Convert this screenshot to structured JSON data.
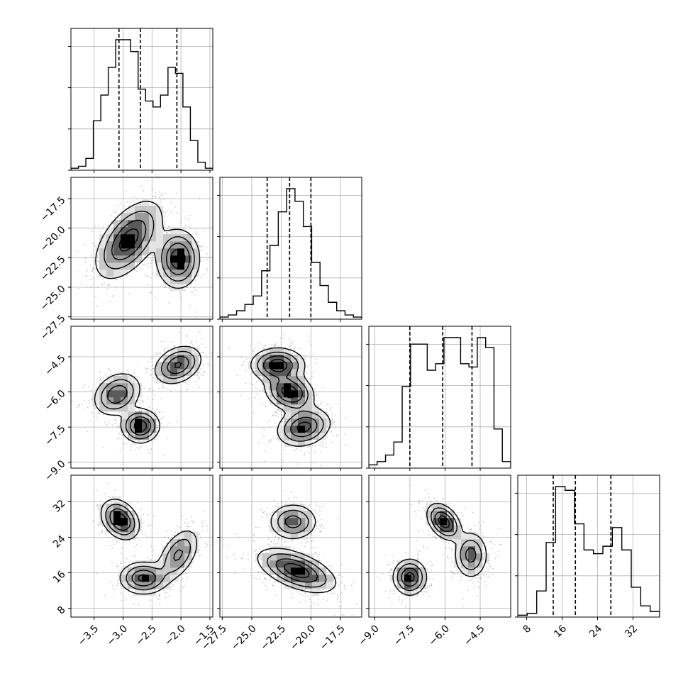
{
  "chart_data": {
    "type": "corner",
    "params": [
      {
        "ticks": [
          -3.5,
          -3.0,
          -2.5,
          -2.0,
          -1.5
        ],
        "tick_labels": [
          "−3.5",
          "−3.0",
          "−2.5",
          "−2.0",
          "−1.5"
        ],
        "range": [
          -3.9,
          -1.45
        ]
      },
      {
        "ticks": [
          -27.5,
          -25.0,
          -22.5,
          -20.0,
          -17.5
        ],
        "tick_labels": [
          "−27.5",
          "−25.0",
          "−22.5",
          "−20.0",
          "−17.5"
        ],
        "range": [
          -27.7,
          -15.7
        ]
      },
      {
        "ticks": [
          -9.0,
          -7.5,
          -6.0,
          -4.5
        ],
        "tick_labels": [
          "−9.0",
          "−7.5",
          "−6.0",
          "−4.5"
        ],
        "range": [
          -9.25,
          -3.2
        ]
      },
      {
        "ticks": [
          8,
          16,
          24,
          32
        ],
        "tick_labels": [
          "8",
          "16",
          "24",
          "32"
        ],
        "range": [
          6.0,
          38.0
        ]
      }
    ],
    "histograms": [
      {
        "counts": [
          1,
          2,
          6,
          25,
          38,
          52,
          66,
          66,
          60,
          41,
          35,
          32,
          38,
          52,
          49,
          32,
          15,
          4,
          1
        ],
        "quantiles": [
          -3.07,
          -2.7,
          -2.07
        ]
      },
      {
        "counts": [
          1,
          2,
          4,
          7,
          11,
          23,
          35,
          51,
          62,
          56,
          44,
          27,
          16,
          8,
          4,
          2,
          1
        ],
        "quantiles": [
          -23.7,
          -21.8,
          -20.0
        ]
      },
      {
        "counts": [
          1,
          2,
          4,
          8,
          25,
          38,
          38,
          30,
          32,
          40,
          40,
          32,
          31,
          40,
          37,
          12,
          2
        ],
        "quantiles": [
          -7.5,
          -6.1,
          -4.85
        ]
      },
      {
        "counts": [
          0.5,
          1,
          7,
          20,
          35,
          34,
          25,
          18,
          17,
          19,
          24,
          18,
          8,
          3,
          1.5
        ],
        "quantiles": [
          14.0,
          19.0,
          27.0
        ]
      }
    ],
    "pairs": [
      {
        "x": 0,
        "y": 1,
        "modes": [
          {
            "cx": -2.9,
            "cy": -21.0,
            "sx": 0.28,
            "sy": 1.6,
            "rho": 0.55,
            "w": 0.62
          },
          {
            "cx": -2.05,
            "cy": -22.6,
            "sx": 0.18,
            "sy": 1.2,
            "rho": 0.0,
            "w": 0.38
          }
        ]
      },
      {
        "x": 0,
        "y": 2,
        "modes": [
          {
            "cx": -3.1,
            "cy": -6.1,
            "sx": 0.2,
            "sy": 0.45,
            "rho": 0.25,
            "w": 0.36
          },
          {
            "cx": -2.7,
            "cy": -7.45,
            "sx": 0.16,
            "sy": 0.35,
            "rho": 0.0,
            "w": 0.3
          },
          {
            "cx": -2.05,
            "cy": -4.85,
            "sx": 0.2,
            "sy": 0.4,
            "rho": 0.3,
            "w": 0.34
          }
        ]
      },
      {
        "x": 0,
        "y": 3,
        "modes": [
          {
            "cx": -3.05,
            "cy": 28.0,
            "sx": 0.16,
            "sy": 2.2,
            "rho": -0.3,
            "w": 0.36
          },
          {
            "cx": -2.65,
            "cy": 14.8,
            "sx": 0.2,
            "sy": 1.8,
            "rho": 0.0,
            "w": 0.34
          },
          {
            "cx": -2.05,
            "cy": 20.0,
            "sx": 0.18,
            "sy": 3.0,
            "rho": 0.5,
            "w": 0.3
          }
        ]
      },
      {
        "x": 1,
        "y": 2,
        "modes": [
          {
            "cx": -22.8,
            "cy": -4.85,
            "sx": 1.1,
            "sy": 0.35,
            "rho": 0.0,
            "w": 0.33
          },
          {
            "cx": -21.8,
            "cy": -6.0,
            "sx": 1.0,
            "sy": 0.4,
            "rho": -0.2,
            "w": 0.33
          },
          {
            "cx": -20.6,
            "cy": -7.5,
            "sx": 1.1,
            "sy": 0.4,
            "rho": 0.2,
            "w": 0.34
          }
        ]
      },
      {
        "x": 1,
        "y": 3,
        "modes": [
          {
            "cx": -21.5,
            "cy": 27.5,
            "sx": 1.0,
            "sy": 2.0,
            "rho": 0.0,
            "w": 0.3
          },
          {
            "cx": -21.2,
            "cy": 16.5,
            "sx": 1.6,
            "sy": 2.4,
            "rho": -0.55,
            "w": 0.7
          }
        ]
      },
      {
        "x": 2,
        "y": 3,
        "modes": [
          {
            "cx": -7.5,
            "cy": 15.0,
            "sx": 0.35,
            "sy": 2.0,
            "rho": 0.0,
            "w": 0.34
          },
          {
            "cx": -6.05,
            "cy": 27.5,
            "sx": 0.35,
            "sy": 2.0,
            "rho": -0.4,
            "w": 0.34
          },
          {
            "cx": -4.9,
            "cy": 20.0,
            "sx": 0.35,
            "sy": 2.6,
            "rho": 0.0,
            "w": 0.32
          }
        ]
      }
    ],
    "grid": true,
    "contour_levels": 4
  }
}
